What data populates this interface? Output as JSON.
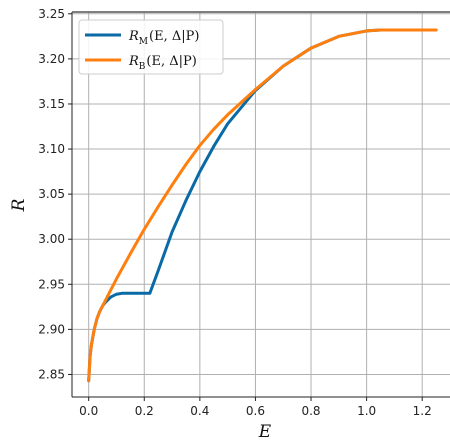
{
  "chart_data": {
    "type": "line",
    "xlabel": "E",
    "ylabel": "R",
    "xlim": [
      -0.06,
      1.3
    ],
    "ylim": [
      2.825,
      3.252
    ],
    "xticks": [
      0.0,
      0.2,
      0.4,
      0.6,
      0.8,
      1.0,
      1.2
    ],
    "xtick_labels": [
      "0.0",
      "0.2",
      "0.4",
      "0.6",
      "0.8",
      "1.0",
      "1.2"
    ],
    "yticks": [
      2.85,
      2.9,
      2.95,
      3.0,
      3.05,
      3.1,
      3.15,
      3.2,
      3.25
    ],
    "ytick_labels": [
      "2.85",
      "2.90",
      "2.95",
      "3.00",
      "3.05",
      "3.10",
      "3.15",
      "3.20",
      "3.25"
    ],
    "grid": true,
    "legend_position": "top-left",
    "series": [
      {
        "name": "R_M(E,Δ|P)",
        "legend": {
          "main": "R",
          "sub": "M",
          "rest": "(E, Δ|P)"
        },
        "color": "#0a6aa6",
        "x": [
          0.0,
          0.005,
          0.01,
          0.02,
          0.03,
          0.04,
          0.05,
          0.06,
          0.08,
          0.1,
          0.12,
          0.15,
          0.2,
          0.22,
          0.25,
          0.3,
          0.35,
          0.4,
          0.45,
          0.5,
          0.6,
          0.7,
          0.8,
          0.9,
          1.0,
          1.05,
          1.1,
          1.15,
          1.2,
          1.25
        ],
        "y": [
          2.843,
          2.87,
          2.883,
          2.9,
          2.912,
          2.92,
          2.926,
          2.93,
          2.936,
          2.939,
          2.94,
          2.94,
          2.94,
          2.94,
          2.965,
          3.008,
          3.043,
          3.075,
          3.103,
          3.128,
          3.165,
          3.192,
          3.212,
          3.225,
          3.231,
          3.232,
          3.232,
          3.232,
          3.232,
          3.232
        ]
      },
      {
        "name": "R_B(E,Δ|P)",
        "legend": {
          "main": "R",
          "sub": "B",
          "rest": "(E, Δ|P)"
        },
        "color": "#ff7f0e",
        "x": [
          0.0,
          0.005,
          0.01,
          0.02,
          0.03,
          0.04,
          0.05,
          0.06,
          0.08,
          0.1,
          0.15,
          0.2,
          0.25,
          0.3,
          0.35,
          0.4,
          0.45,
          0.5,
          0.6,
          0.7,
          0.8,
          0.9,
          1.0,
          1.05,
          1.1,
          1.15,
          1.2,
          1.25
        ],
        "y": [
          2.843,
          2.87,
          2.883,
          2.9,
          2.912,
          2.92,
          2.926,
          2.932,
          2.944,
          2.956,
          2.984,
          3.011,
          3.036,
          3.06,
          3.083,
          3.104,
          3.122,
          3.138,
          3.166,
          3.192,
          3.212,
          3.225,
          3.231,
          3.232,
          3.232,
          3.232,
          3.232,
          3.232
        ]
      }
    ]
  }
}
